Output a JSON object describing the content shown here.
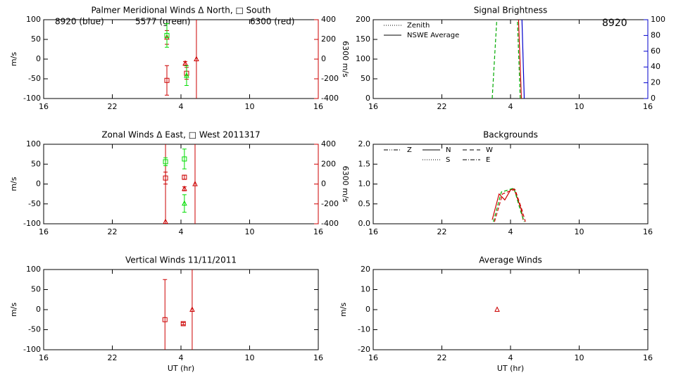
{
  "chart_data": [
    {
      "type": "scatter",
      "title": "Palmer Meridional Winds Δ North, □ South",
      "ylabel": "m/s",
      "y2label": "6300 m/s",
      "y2color": "#cc0000",
      "xlim": [
        16,
        40
      ],
      "xticks": [
        16,
        22,
        {
          "value": 28,
          "label": "4"
        },
        {
          "value": 34,
          "label": "10"
        },
        {
          "value": 40,
          "label": "16"
        }
      ],
      "ylim": [
        -100,
        100
      ],
      "yticks": [
        -100,
        -50,
        0,
        50,
        100
      ],
      "y2lim": [
        -400,
        400
      ],
      "y2ticks": [
        -400,
        -200,
        0,
        200,
        400
      ],
      "annotations": [
        {
          "text": "8920 (blue)",
          "color": "#0000cc"
        },
        {
          "text": "5577 (green)",
          "color": "#00dd00"
        },
        {
          "text": "6300 (red)",
          "color": "#cc0000"
        }
      ],
      "series": [
        {
          "color": "#cc0000",
          "marker": "triangle",
          "axis": "y2",
          "x": [
            26.77,
            28.37,
            29.35
          ],
          "values": [
            220,
            -44,
            0
          ],
          "errors": [
            70,
            20,
            1600
          ]
        },
        {
          "color": "#cc0000",
          "marker": "square",
          "axis": "y2",
          "x": [
            26.77,
            28.49
          ],
          "values": [
            -216,
            -144
          ],
          "errors": [
            150,
            60
          ]
        },
        {
          "color": "#00dd00",
          "marker": "square",
          "x": [
            26.77
          ],
          "values": [
            60
          ],
          "errors": [
            30
          ]
        },
        {
          "color": "#00dd00",
          "marker": "triangle",
          "x": [
            28.49
          ],
          "values": [
            -42
          ],
          "errors": [
            25
          ]
        }
      ]
    },
    {
      "type": "line",
      "title": "Signal Brightness",
      "y2color": "#0000cc",
      "xlim": [
        16,
        40
      ],
      "xticks": [
        16,
        22,
        {
          "value": 28,
          "label": "4"
        },
        {
          "value": 34,
          "label": "10"
        },
        {
          "value": 40,
          "label": "16"
        }
      ],
      "ylim": [
        0,
        200
      ],
      "yticks": [
        0,
        50,
        100,
        150,
        200
      ],
      "y2lim": [
        0,
        100
      ],
      "y2ticks": [
        0,
        20,
        40,
        60,
        80,
        100
      ],
      "annotations": [
        {
          "text": "8920",
          "color": "#0000cc"
        }
      ],
      "legend": [
        {
          "label": "Zenith",
          "dash": "1,2"
        },
        {
          "label": "NSWE Average",
          "dash": "none"
        }
      ],
      "series": [
        {
          "color": "#00aa00",
          "dash": "5,3",
          "x": [
            26.4,
            26.8
          ],
          "values": [
            0,
            200
          ]
        },
        {
          "color": "#00aa00",
          "dash": "5,3",
          "x": [
            28.85,
            28.6
          ],
          "values": [
            0,
            200
          ]
        },
        {
          "color": "#cc0000",
          "dash": "none",
          "x": [
            28.95,
            28.7
          ],
          "values": [
            0,
            200
          ]
        },
        {
          "color": "#0000cc",
          "dash": "none",
          "axis": "y2",
          "x": [
            29.2,
            29.0
          ],
          "values": [
            0,
            100
          ]
        }
      ]
    },
    {
      "type": "scatter",
      "title": "Zonal Winds Δ East, □ West 2011317",
      "ylabel": "m/s",
      "y2label": "6300 m/s",
      "y2color": "#cc0000",
      "xlim": [
        16,
        40
      ],
      "xticks": [
        16,
        22,
        {
          "value": 28,
          "label": "4"
        },
        {
          "value": 34,
          "label": "10"
        },
        {
          "value": 40,
          "label": "16"
        }
      ],
      "ylim": [
        -100,
        100
      ],
      "yticks": [
        -100,
        -50,
        0,
        50,
        100
      ],
      "y2lim": [
        -400,
        400
      ],
      "y2ticks": [
        -400,
        -200,
        0,
        200,
        400
      ],
      "series": [
        {
          "color": "#cc0000",
          "marker": "triangle",
          "axis": "y2",
          "x": [
            26.65,
            28.3,
            29.23
          ],
          "values": [
            -380,
            -48,
            0
          ],
          "errors": [
            1600,
            20,
            1600
          ]
        },
        {
          "color": "#cc0000",
          "marker": "square",
          "axis": "y2",
          "x": [
            26.65,
            28.3
          ],
          "values": [
            60,
            68
          ],
          "errors": [
            60,
            20
          ]
        },
        {
          "color": "#00dd00",
          "marker": "square",
          "x": [
            26.65,
            28.3
          ],
          "values": [
            56,
            63
          ],
          "errors": [
            10,
            25
          ]
        },
        {
          "color": "#00dd00",
          "marker": "triangle",
          "x": [
            28.3
          ],
          "values": [
            -49
          ],
          "errors": [
            22
          ]
        }
      ]
    },
    {
      "type": "line",
      "title": "Backgrounds",
      "xlim": [
        16,
        40
      ],
      "xticks": [
        16,
        22,
        {
          "value": 28,
          "label": "4"
        },
        {
          "value": 34,
          "label": "10"
        },
        {
          "value": 40,
          "label": "16"
        }
      ],
      "ylim": [
        0,
        2
      ],
      "yticks": [
        {
          "value": 0,
          "label": "0.0"
        },
        0.5,
        {
          "value": 1,
          "label": "1.0"
        },
        1.5,
        {
          "value": 2,
          "label": "2.0"
        }
      ],
      "legend": [
        {
          "label": "Z",
          "dash": "6,2,1,2,1,2"
        },
        {
          "label": "N",
          "dash": "none"
        },
        {
          "label": "W",
          "dash": "6,4"
        },
        {
          "label": "S",
          "dash": "1,2"
        },
        {
          "label": "E",
          "dash": "6,2,1,2"
        }
      ],
      "series": [
        {
          "color": "#cc0000",
          "dash": "none",
          "x": [
            26.4,
            27.0,
            27.5,
            28.0,
            28.3,
            28.9,
            29.1
          ],
          "values": [
            0.1,
            0.75,
            0.6,
            0.85,
            0.88,
            0.4,
            0.1
          ]
        },
        {
          "color": "#00aa00",
          "dash": "5,3",
          "x": [
            26.5,
            27.2,
            27.8,
            28.3,
            28.9,
            29.2
          ],
          "values": [
            0.05,
            0.8,
            0.85,
            0.9,
            0.3,
            0.05
          ]
        },
        {
          "color": "#cc0000",
          "dash": "5,3",
          "x": [
            26.6,
            27.3,
            27.9,
            28.4,
            29.0,
            29.3
          ],
          "values": [
            0.05,
            0.75,
            0.82,
            0.86,
            0.35,
            0.05
          ]
        }
      ]
    },
    {
      "type": "scatter",
      "title": "Vertical Winds 11/11/2011",
      "ylabel": "m/s",
      "xlabel": "UT (hr)",
      "xlim": [
        16,
        40
      ],
      "xticks": [
        16,
        22,
        {
          "value": 28,
          "label": "4"
        },
        {
          "value": 34,
          "label": "10"
        },
        {
          "value": 40,
          "label": "16"
        }
      ],
      "ylim": [
        -100,
        100
      ],
      "yticks": [
        -100,
        -50,
        0,
        50,
        100
      ],
      "series": [
        {
          "color": "#cc0000",
          "marker": "triangle",
          "x": [
            28.98
          ],
          "values": [
            0
          ],
          "errors": [
            200
          ]
        },
        {
          "color": "#cc0000",
          "marker": "square",
          "x": [
            26.6,
            28.2
          ],
          "values": [
            -25,
            -35
          ],
          "errors": [
            100,
            3
          ]
        }
      ]
    },
    {
      "type": "scatter",
      "title": "Average Winds",
      "ylabel": "m/s",
      "xlabel": "UT (hr)",
      "xlim": [
        16,
        40
      ],
      "xticks": [
        16,
        22,
        {
          "value": 28,
          "label": "4"
        },
        {
          "value": 34,
          "label": "10"
        },
        {
          "value": 40,
          "label": "16"
        }
      ],
      "ylim": [
        -20,
        20
      ],
      "yticks": [
        -20,
        -10,
        0,
        10,
        20
      ],
      "series": [
        {
          "color": "#cc0000",
          "marker": "triangle",
          "x": [
            26.83
          ],
          "values": [
            0
          ]
        }
      ]
    }
  ]
}
